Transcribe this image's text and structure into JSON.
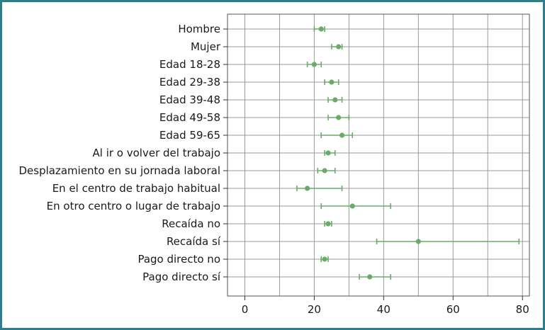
{
  "chart_data": {
    "type": "scatter",
    "title": "",
    "xlabel": "",
    "ylabel": "",
    "xlim": [
      -5,
      82
    ],
    "xticks": [
      0,
      20,
      40,
      60,
      80
    ],
    "grid": true,
    "error_bars": true,
    "colors": {
      "series": "#6aab6a",
      "grid": "#999999",
      "axis": "#555555",
      "frame": "#2a7f8a"
    },
    "categories": [
      "Hombre",
      "Mujer",
      "Edad 18-28",
      "Edad 29-38",
      "Edad 39-48",
      "Edad 49-58",
      "Edad 59-65",
      "Al ir o volver del trabajo",
      "Desplazamiento en su jornada laboral",
      "En el centro de trabajo habitual",
      "En otro centro o lugar de trabajo",
      "Recaída no",
      "Recaída sí",
      "Pago directo no",
      "Pago directo sí"
    ],
    "values": [
      22,
      27,
      20,
      25,
      26,
      27,
      28,
      24,
      23,
      18,
      31,
      24,
      50,
      23,
      36
    ],
    "lower": [
      20,
      25,
      18,
      23,
      24,
      24,
      22,
      23,
      21,
      15,
      22,
      23,
      38,
      22,
      33
    ],
    "upper": [
      23,
      28,
      22,
      27,
      28,
      30,
      31,
      26,
      26,
      28,
      42,
      25,
      79,
      24,
      42
    ]
  }
}
